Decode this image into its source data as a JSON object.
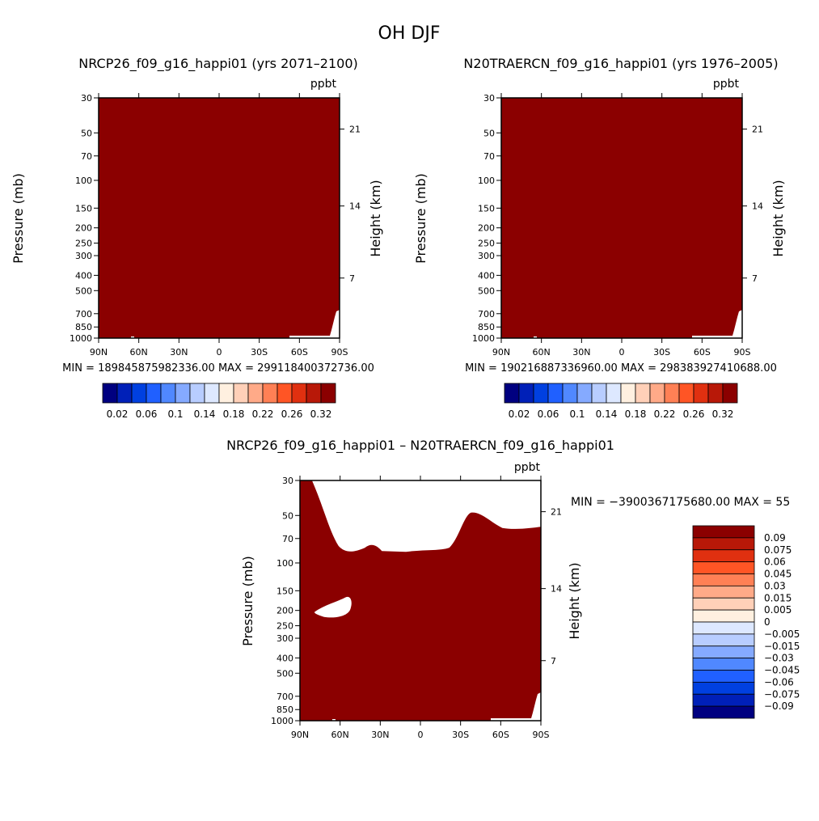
{
  "figure": {
    "title": "OH DJF"
  },
  "panels": [
    {
      "title": "NRCP26_f09_g16_happi01 (yrs 2071–2100)",
      "units": "ppbt",
      "ylabel": "Pressure (mb)",
      "ylabel_right": "Height (km)",
      "minmax": "MIN = 189845875982336.00   MAX = 299118400372736.00"
    },
    {
      "title": "N20TRAERCN_f09_g16_happi01 (yrs 1976–2005)",
      "units": "ppbt",
      "ylabel": "Pressure (mb)",
      "ylabel_right": "Height (km)",
      "minmax": "MIN = 190216887336960.00   MAX = 298383927410688.00"
    },
    {
      "title": "NRCP26_f09_g16_happi01 – N20TRAERCN_f09_g16_happi01",
      "units": "ppbt",
      "ylabel": "Pressure (mb)",
      "ylabel_right": "Height (km)",
      "minmax": "MIN = −3900367175680.00   MAX = 55"
    }
  ],
  "chart_data": [
    {
      "type": "heatmap",
      "title": "NRCP26_f09_g16_happi01 (yrs 2071–2100)",
      "units": "ppbt",
      "xlabel": "",
      "ylabel": "Pressure (mb)",
      "ylabel_right": "Height (km)",
      "x_ticks": [
        "90N",
        "60N",
        "30N",
        "0",
        "30S",
        "60S",
        "90S"
      ],
      "y_ticks": [
        30,
        50,
        70,
        100,
        150,
        200,
        250,
        300,
        400,
        500,
        700,
        850,
        1000
      ],
      "y_scale": "log",
      "y_reversed": true,
      "ylim": [
        1000,
        30
      ],
      "right_ticks": [
        21,
        14,
        7
      ],
      "min": 189845875982336.0,
      "max": 299118400372736.0,
      "fill_color": "#8b0000",
      "colorbar_labels": [
        "0.02",
        "0.06",
        "0.1",
        "0.14",
        "0.18",
        "0.22",
        "0.26",
        "0.32"
      ],
      "colorbar_colors": [
        "#000080",
        "#0020b8",
        "#0040e0",
        "#2060ff",
        "#5088ff",
        "#85aaff",
        "#b8cdff",
        "#dde8ff",
        "#fff0e0",
        "#ffd0b8",
        "#ffaa88",
        "#ff8055",
        "#ff5525",
        "#e03010",
        "#b81808",
        "#8b0000"
      ],
      "colorbar_orientation": "horizontal"
    },
    {
      "type": "heatmap",
      "title": "N20TRAERCN_f09_g16_happi01 (yrs 1976–2005)",
      "units": "ppbt",
      "xlabel": "",
      "ylabel": "Pressure (mb)",
      "ylabel_right": "Height (km)",
      "x_ticks": [
        "90N",
        "60N",
        "30N",
        "0",
        "30S",
        "60S",
        "90S"
      ],
      "y_ticks": [
        30,
        50,
        70,
        100,
        150,
        200,
        250,
        300,
        400,
        500,
        700,
        850,
        1000
      ],
      "y_scale": "log",
      "y_reversed": true,
      "ylim": [
        1000,
        30
      ],
      "right_ticks": [
        21,
        14,
        7
      ],
      "min": 190216887336960.0,
      "max": 298383927410688.0,
      "fill_color": "#8b0000",
      "colorbar_labels": [
        "0.02",
        "0.06",
        "0.1",
        "0.14",
        "0.18",
        "0.22",
        "0.26",
        "0.32"
      ],
      "colorbar_colors": [
        "#000080",
        "#0020b8",
        "#0040e0",
        "#2060ff",
        "#5088ff",
        "#85aaff",
        "#b8cdff",
        "#dde8ff",
        "#fff0e0",
        "#ffd0b8",
        "#ffaa88",
        "#ff8055",
        "#ff5525",
        "#e03010",
        "#b81808",
        "#8b0000"
      ],
      "colorbar_orientation": "horizontal"
    },
    {
      "type": "heatmap",
      "title": "NRCP26_f09_g16_happi01 – N20TRAERCN_f09_g16_happi01",
      "units": "ppbt",
      "xlabel": "",
      "ylabel": "Pressure (mb)",
      "ylabel_right": "Height (km)",
      "x_ticks": [
        "90N",
        "60N",
        "30N",
        "0",
        "30S",
        "60S",
        "90S"
      ],
      "y_ticks": [
        30,
        50,
        70,
        100,
        150,
        200,
        250,
        300,
        400,
        500,
        700,
        850,
        1000
      ],
      "y_scale": "log",
      "y_reversed": true,
      "ylim": [
        1000,
        30
      ],
      "right_ticks": [
        21,
        14,
        7
      ],
      "min": -3900367175680.0,
      "max": 55,
      "fill_color": "#8b0000",
      "colorbar_labels": [
        "0.09",
        "0.075",
        "0.06",
        "0.045",
        "0.03",
        "0.015",
        "0.005",
        "0",
        "−0.005",
        "−0.015",
        "−0.03",
        "−0.045",
        "−0.06",
        "−0.075",
        "−0.09"
      ],
      "colorbar_colors": [
        "#8b0000",
        "#b81808",
        "#e03010",
        "#ff5525",
        "#ff8055",
        "#ffaa88",
        "#ffd0b8",
        "#fff0e0",
        "#dde8ff",
        "#b8cdff",
        "#85aaff",
        "#5088ff",
        "#2060ff",
        "#0040e0",
        "#0020b8",
        "#000080"
      ],
      "colorbar_orientation": "vertical"
    }
  ]
}
